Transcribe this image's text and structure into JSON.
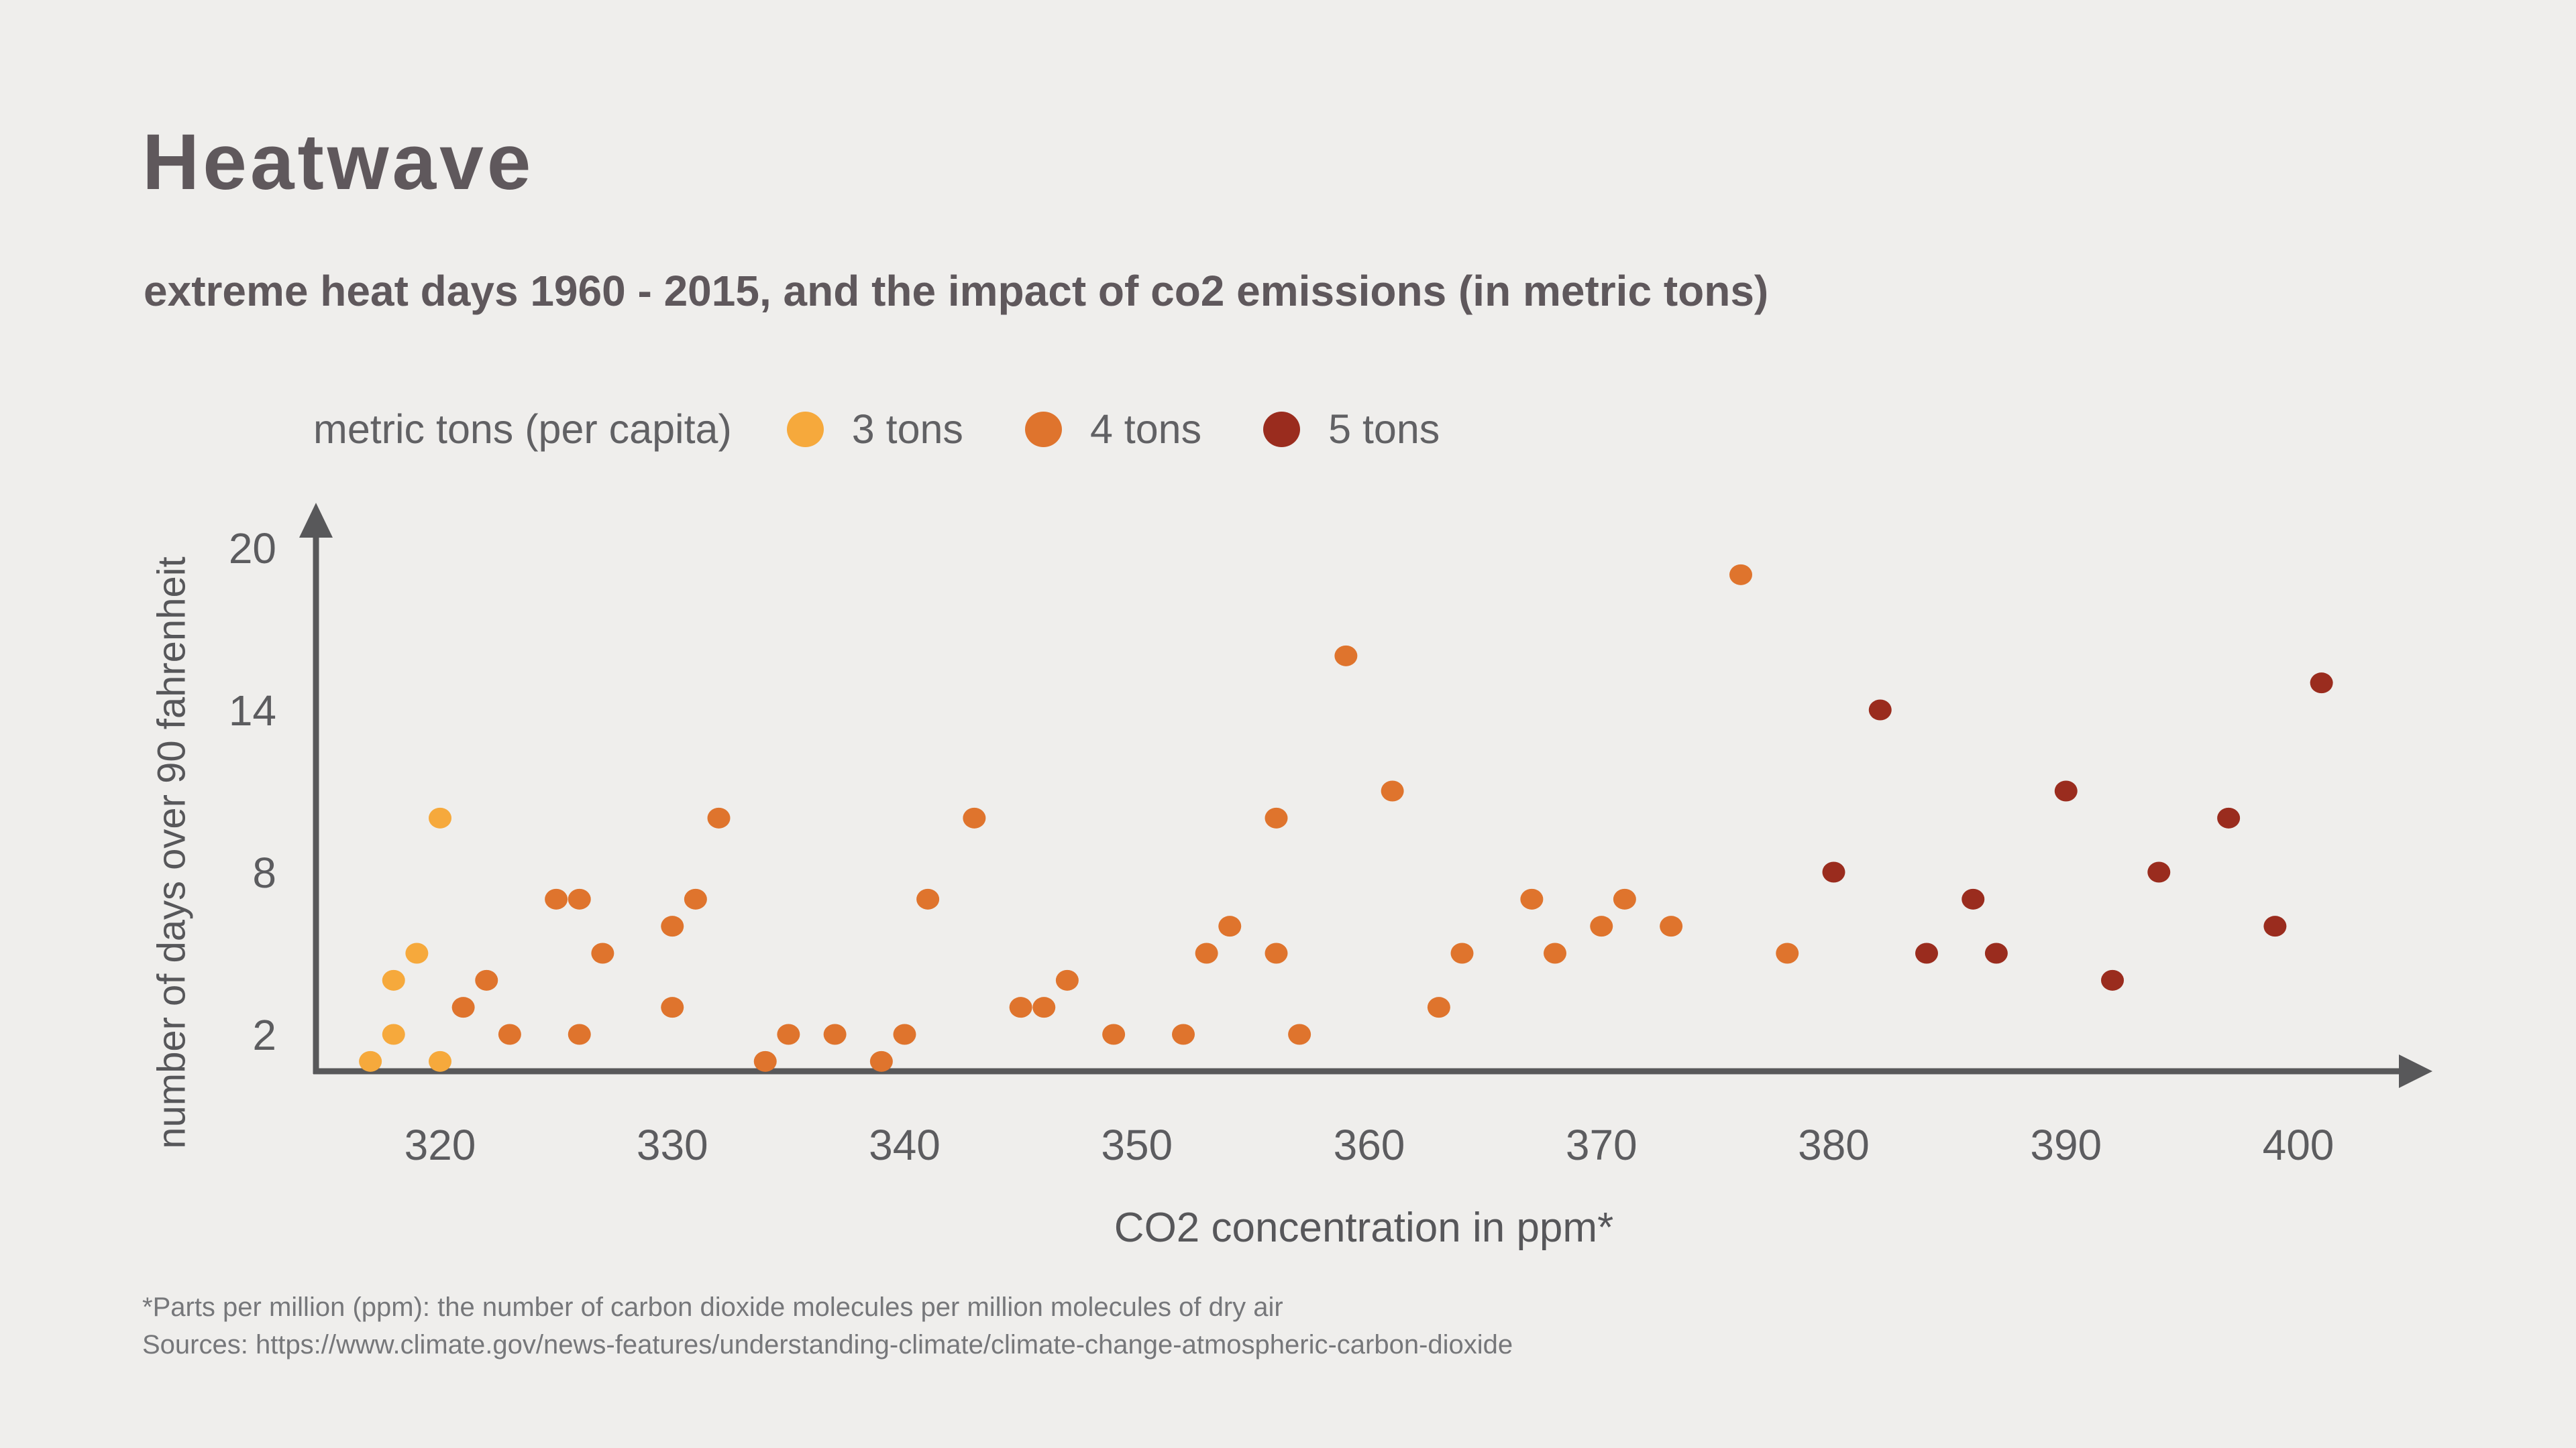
{
  "header": {
    "title": "Heatwave",
    "subtitle": "extreme heat days 1960 - 2015, and the impact of co2 emissions (in metric tons)"
  },
  "legend": {
    "title": "metric tons (per capita)"
  },
  "footnotes": [
    "*Parts per million (ppm): the number of carbon dioxide molecules per million molecules of dry air",
    "Sources: https://www.climate.gov/news-features/understanding-climate/climate-change-atmospheric-carbon-dioxide"
  ],
  "colors": {
    "background": "#efeeec",
    "title_text": "#5f585c",
    "axis": "#58585a",
    "tick_text": "#5c5c5f",
    "footnote_text": "#76777a"
  },
  "chart_data": {
    "type": "scatter",
    "title": "Heatwave",
    "subtitle": "extreme heat days 1960 - 2015, and the impact of co2 emissions (in metric tons)",
    "xlabel": "CO2 concentration in ppm*",
    "ylabel": "number of days over 90 fahrenheit",
    "x_ticks": [
      320,
      330,
      340,
      350,
      360,
      370,
      380,
      390,
      400
    ],
    "y_ticks": [
      2,
      8,
      14,
      20
    ],
    "xlim": [
      314.5,
      406
    ],
    "ylim": [
      0.5,
      21
    ],
    "grid": false,
    "legend_position": "top",
    "legend_title": "metric tons (per capita)",
    "series": [
      {
        "name": "3 tons",
        "metric_tons_per_capita": 3,
        "color": "#f6a93c",
        "points": [
          [
            317,
            1
          ],
          [
            318,
            2
          ],
          [
            318,
            4
          ],
          [
            319,
            5
          ],
          [
            320,
            1
          ],
          [
            320,
            10
          ]
        ]
      },
      {
        "name": "4 tons",
        "metric_tons_per_capita": 4,
        "color": "#df742d",
        "points": [
          [
            321,
            3
          ],
          [
            322,
            4
          ],
          [
            323,
            2
          ],
          [
            325,
            7
          ],
          [
            326,
            2
          ],
          [
            326,
            7
          ],
          [
            327,
            5
          ],
          [
            330,
            3
          ],
          [
            330,
            6
          ],
          [
            331,
            7
          ],
          [
            332,
            10
          ],
          [
            334,
            1
          ],
          [
            335,
            2
          ],
          [
            337,
            2
          ],
          [
            339,
            1
          ],
          [
            340,
            2
          ],
          [
            341,
            7
          ],
          [
            343,
            10
          ],
          [
            345,
            3
          ],
          [
            346,
            3
          ],
          [
            347,
            4
          ],
          [
            349,
            2
          ],
          [
            352,
            2
          ],
          [
            353,
            5
          ],
          [
            354,
            6
          ],
          [
            356,
            5
          ],
          [
            356,
            10
          ],
          [
            357,
            2
          ],
          [
            359,
            16
          ],
          [
            361,
            11
          ],
          [
            363,
            3
          ],
          [
            364,
            5
          ],
          [
            367,
            7
          ],
          [
            368,
            5
          ],
          [
            370,
            6
          ],
          [
            371,
            7
          ],
          [
            373,
            6
          ],
          [
            376,
            19
          ],
          [
            378,
            5
          ]
        ]
      },
      {
        "name": "5 tons",
        "metric_tons_per_capita": 5,
        "color": "#9a2c1e",
        "points": [
          [
            380,
            8
          ],
          [
            382,
            14
          ],
          [
            384,
            5
          ],
          [
            386,
            7
          ],
          [
            387,
            5
          ],
          [
            390,
            11
          ],
          [
            392,
            4
          ],
          [
            394,
            8
          ],
          [
            397,
            10
          ],
          [
            399,
            6
          ],
          [
            401,
            15
          ]
        ]
      }
    ]
  }
}
